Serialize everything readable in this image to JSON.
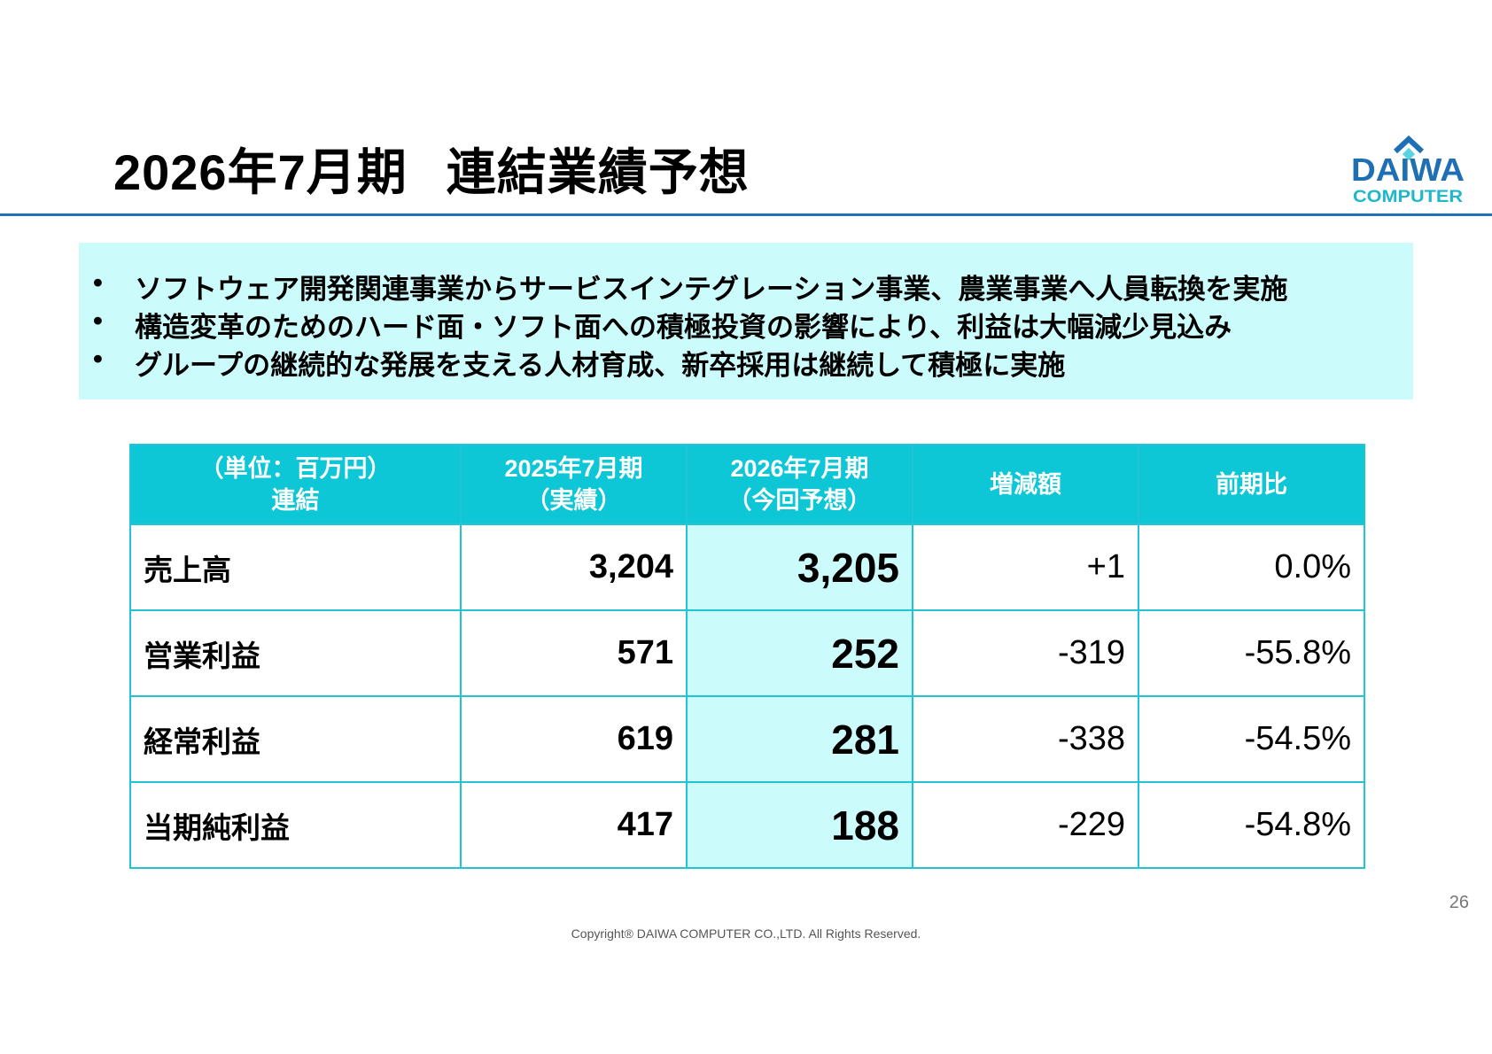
{
  "header": {
    "title_period": "2026年7月期",
    "title_main": "連結業績予想",
    "logo": {
      "line1": "DAIWA",
      "line2": "COMPUTER",
      "brand_color": "#1f6fb5"
    }
  },
  "bullets": [
    "ソフトウェア開発関連事業からサービスインテグレーション事業、農業事業へ人員転換を実施",
    "構造変革のためのハード面・ソフト面への積極投資の影響により、利益は大幅減少見込み",
    "グループの継続的な発展を支える人材育成、新卒採用は継続して積極に実施"
  ],
  "bullet_symbol": "•",
  "table": {
    "headers": [
      {
        "line1": "（単位：百万円）",
        "line2": "連結"
      },
      {
        "line1": "2025年7月期",
        "line2": "（実績）"
      },
      {
        "line1": "2026年7月期",
        "line2": "（今回予想）"
      },
      {
        "line1": "増減額",
        "line2": ""
      },
      {
        "line1": "前期比",
        "line2": ""
      }
    ],
    "rows": [
      {
        "label": "売上高",
        "actual_2025": "3,204",
        "forecast_2026": "3,205",
        "change": "+1",
        "ratio": "0.0%"
      },
      {
        "label": "営業利益",
        "actual_2025": "571",
        "forecast_2026": "252",
        "change": "-319",
        "ratio": "-55.8%"
      },
      {
        "label": "経常利益",
        "actual_2025": "619",
        "forecast_2026": "281",
        "change": "-338",
        "ratio": "-54.5%"
      },
      {
        "label": "当期純利益",
        "actual_2025": "417",
        "forecast_2026": "188",
        "change": "-229",
        "ratio": "-54.8%"
      }
    ]
  },
  "footer": {
    "page_number": "26",
    "copyright": "Copyright® DAIWA COMPUTER CO.,LTD. All Rights Reserved."
  },
  "colors": {
    "accent_rule": "#1f72b8",
    "header_cell": "#0dc7d6",
    "highlight_fill": "#ccfbfb",
    "table_border": "#22c3d2"
  }
}
